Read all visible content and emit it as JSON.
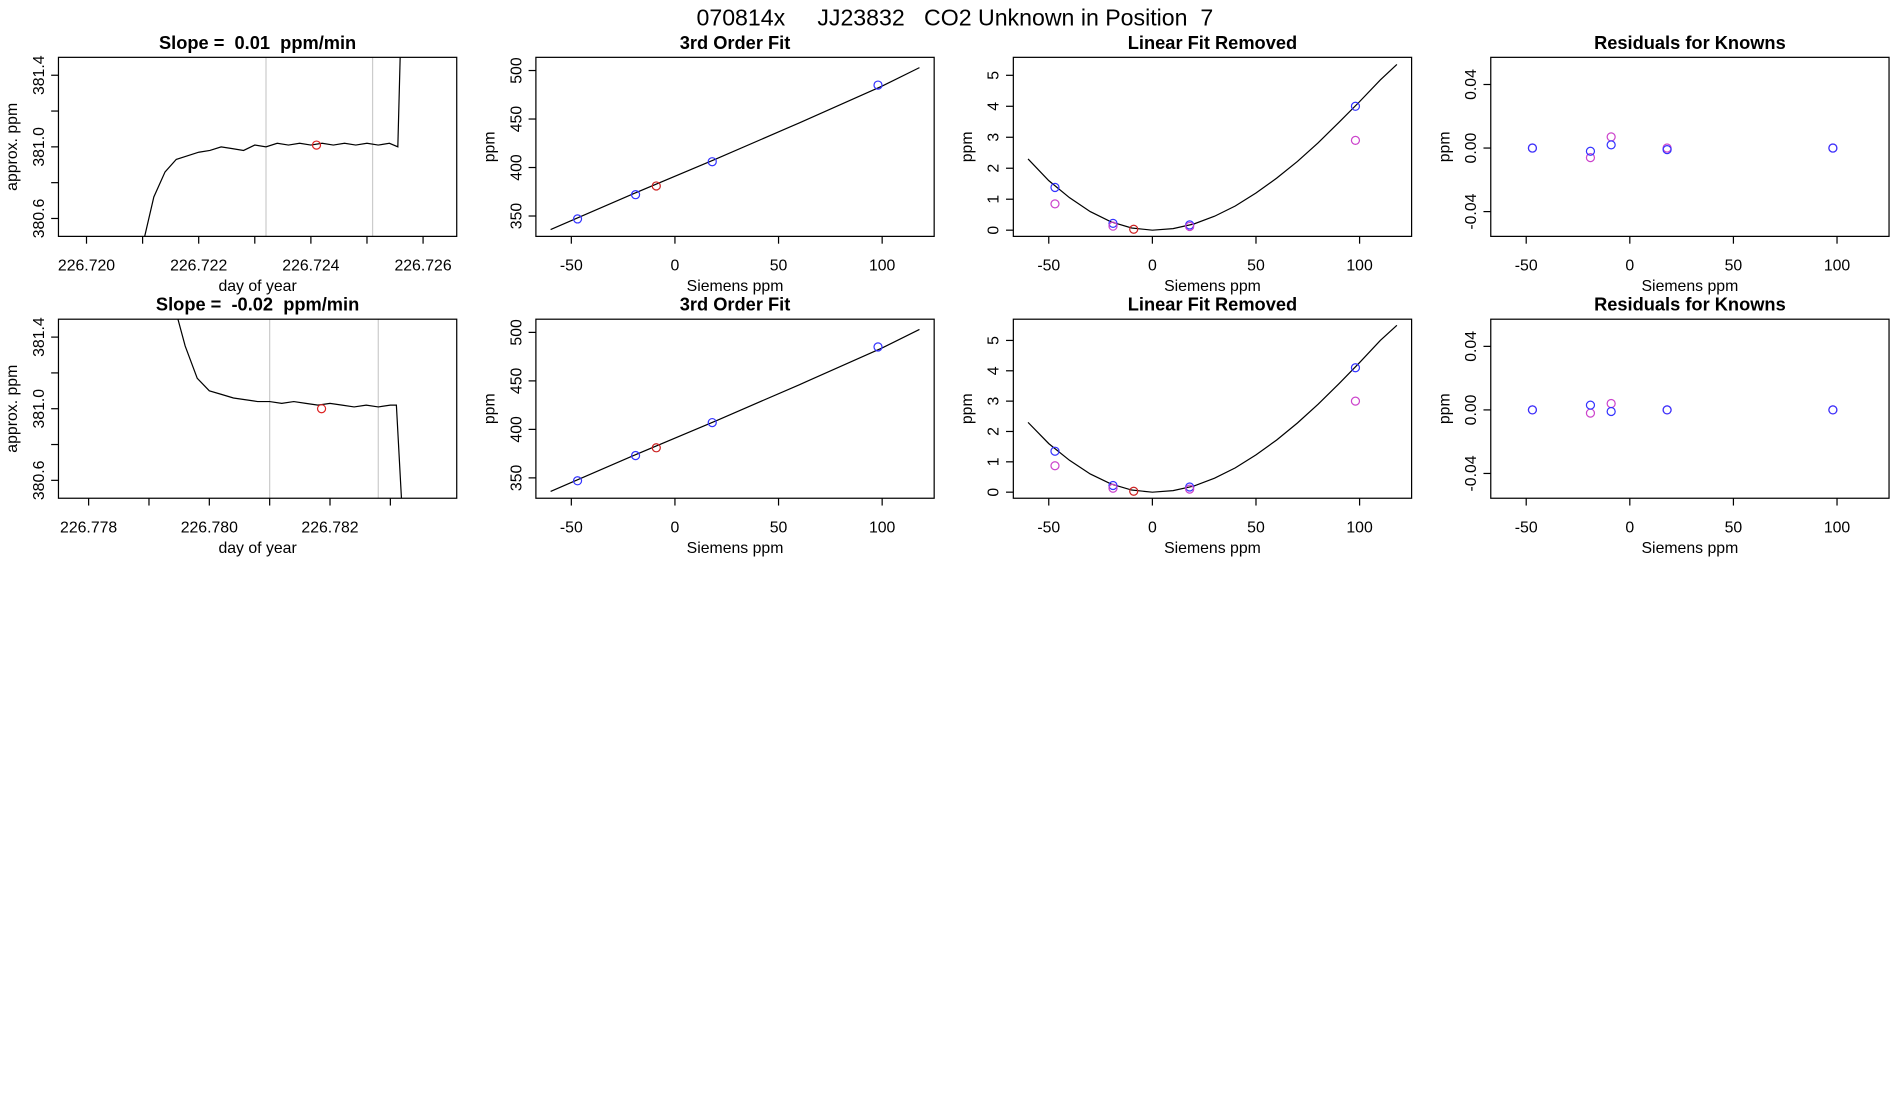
{
  "title": "070814x     JJ23832   CO2 Unknown in Position  7",
  "chart_data": [
    {
      "type": "line",
      "title": "Slope =  0.01  ppm/min",
      "xlabel": "day of year",
      "ylabel": "approx. ppm",
      "xlim": [
        226.7195,
        226.7266
      ],
      "ylim": [
        380.5,
        381.5
      ],
      "xticks": [
        {
          "value": 226.72,
          "label": "226.720"
        },
        {
          "value": 226.722,
          "label": "226.722"
        },
        {
          "value": 226.724,
          "label": "226.724"
        },
        {
          "value": 226.726,
          "label": "226.726"
        }
      ],
      "xticks_minor": [
        226.721,
        226.723,
        226.725
      ],
      "yticks": [
        {
          "value": 380.6,
          "label": "380.6"
        },
        {
          "value": 381,
          "label": "381.0"
        },
        {
          "value": 381.4,
          "label": "381.4"
        }
      ],
      "yticks_minor": [
        380.8,
        381.2
      ],
      "vlines": [
        226.7232,
        226.7251
      ],
      "vline_color": "#cccccc",
      "series": [
        {
          "style": "line",
          "color": "#000000",
          "x": [
            226.721,
            226.7212,
            226.7214,
            226.7216,
            226.7218,
            226.722,
            226.7222,
            226.7224,
            226.7226,
            226.7228,
            226.723,
            226.7232,
            226.7234,
            226.7236,
            226.7238,
            226.724,
            226.7242,
            226.7244,
            226.7246,
            226.7248,
            226.725,
            226.7252,
            226.7254,
            226.72555,
            226.7256
          ],
          "values": [
            380.45,
            380.72,
            380.86,
            380.93,
            380.95,
            380.97,
            380.98,
            381.0,
            380.99,
            380.98,
            381.01,
            381.0,
            381.02,
            381.01,
            381.02,
            381.01,
            381.02,
            381.01,
            381.02,
            381.01,
            381.02,
            381.01,
            381.02,
            381.0,
            381.6
          ]
        },
        {
          "style": "points",
          "color": "#dd2222",
          "x": [
            226.7241
          ],
          "values": [
            381.01
          ]
        }
      ]
    },
    {
      "type": "line",
      "title": "3rd Order Fit",
      "xlabel": "Siemens ppm",
      "ylabel": "ppm",
      "xlim": [
        -67.1,
        125.1
      ],
      "ylim": [
        329,
        513.6
      ],
      "xticks": [
        -50,
        0,
        50,
        100
      ],
      "yticks": [
        350,
        400,
        450,
        500
      ],
      "series": [
        {
          "style": "line",
          "color": "#000000",
          "x": [
            -60,
            -20,
            20,
            60,
            100,
            118
          ],
          "values": [
            336,
            373,
            409,
            446,
            484,
            503
          ]
        },
        {
          "style": "points",
          "color": "#3333ff",
          "x": [
            -47,
            -19,
            18,
            98
          ],
          "values": [
            347,
            372,
            406,
            485
          ]
        },
        {
          "style": "points",
          "color": "#cc2222",
          "x": [
            -9
          ],
          "values": [
            381
          ]
        }
      ]
    },
    {
      "type": "line",
      "title": "Linear Fit Removed",
      "xlabel": "Siemens ppm",
      "ylabel": "ppm",
      "xlim": [
        -67.1,
        125.1
      ],
      "ylim": [
        -0.2,
        5.58
      ],
      "xticks": [
        -50,
        0,
        50,
        100
      ],
      "yticks": [
        0,
        1,
        2,
        3,
        4,
        5
      ],
      "series": [
        {
          "style": "line",
          "color": "#000000",
          "x": [
            -60,
            -50,
            -40,
            -30,
            -20,
            -10,
            0,
            10,
            20,
            30,
            40,
            50,
            60,
            70,
            80,
            90,
            100,
            110,
            118
          ],
          "values": [
            2.3,
            1.6,
            1.05,
            0.6,
            0.27,
            0.07,
            0,
            0.05,
            0.2,
            0.45,
            0.78,
            1.2,
            1.68,
            2.22,
            2.82,
            3.48,
            4.15,
            4.85,
            5.35
          ]
        },
        {
          "style": "points",
          "color": "#3333ff",
          "x": [
            -47,
            -19,
            18,
            98
          ],
          "values": [
            1.38,
            0.22,
            0.17,
            4.0
          ]
        },
        {
          "style": "points",
          "color": "#cc44cc",
          "x": [
            -47,
            -19,
            18,
            98
          ],
          "values": [
            0.85,
            0.13,
            0.12,
            2.9
          ]
        },
        {
          "style": "points",
          "color": "#cc2222",
          "x": [
            -9
          ],
          "values": [
            0.03
          ]
        }
      ]
    },
    {
      "type": "scatter",
      "title": "Residuals for Knowns",
      "xlabel": "Siemens ppm",
      "ylabel": "ppm",
      "xlim": [
        -67.1,
        125.1
      ],
      "ylim": [
        -0.0556,
        0.0571
      ],
      "xticks": [
        -50,
        0,
        50,
        100
      ],
      "yticks": [
        {
          "value": -0.04,
          "label": "-0.04"
        },
        {
          "value": 0,
          "label": "0.00"
        },
        {
          "value": 0.04,
          "label": "0.04"
        }
      ],
      "series": [
        {
          "style": "points",
          "color": "#cc44cc",
          "x": [
            -47,
            -19,
            -9,
            18,
            98
          ],
          "values": [
            0,
            -0.006,
            0.007,
            0,
            0
          ]
        },
        {
          "style": "points",
          "color": "#3333ff",
          "x": [
            -47,
            -19,
            -9,
            18,
            98
          ],
          "values": [
            0,
            -0.002,
            0.002,
            -0.001,
            0
          ]
        }
      ]
    },
    {
      "type": "line",
      "title": "Slope =  -0.02  ppm/min",
      "xlabel": "day of year",
      "ylabel": "approx. ppm",
      "xlim": [
        226.7775,
        226.7841
      ],
      "ylim": [
        380.5,
        381.5
      ],
      "xticks": [
        {
          "value": 226.778,
          "label": "226.778"
        },
        {
          "value": 226.78,
          "label": "226.780"
        },
        {
          "value": 226.782,
          "label": "226.782"
        }
      ],
      "xticks_minor": [
        226.779,
        226.781,
        226.783
      ],
      "yticks": [
        {
          "value": 380.6,
          "label": "380.6"
        },
        {
          "value": 381,
          "label": "381.0"
        },
        {
          "value": 381.4,
          "label": "381.4"
        }
      ],
      "yticks_minor": [
        380.8,
        381.2
      ],
      "vlines": [
        226.781,
        226.7828
      ],
      "vline_color": "#cccccc",
      "series": [
        {
          "style": "line",
          "color": "#000000",
          "x": [
            226.7794,
            226.7796,
            226.7798,
            226.78,
            226.7802,
            226.7804,
            226.7806,
            226.7808,
            226.781,
            226.7812,
            226.7814,
            226.7816,
            226.7818,
            226.782,
            226.7822,
            226.7824,
            226.7826,
            226.7828,
            226.783,
            226.7831,
            226.7832
          ],
          "values": [
            381.6,
            381.35,
            381.17,
            381.1,
            381.08,
            381.06,
            381.05,
            381.04,
            381.04,
            381.03,
            381.04,
            381.03,
            381.02,
            381.03,
            381.02,
            381.01,
            381.02,
            381.01,
            381.02,
            381.02,
            380.4
          ]
        },
        {
          "style": "points",
          "color": "#dd2222",
          "x": [
            226.78186
          ],
          "values": [
            381.0
          ]
        }
      ]
    },
    {
      "type": "line",
      "title": "3rd Order Fit",
      "xlabel": "Siemens ppm",
      "ylabel": "ppm",
      "xlim": [
        -67.1,
        125.1
      ],
      "ylim": [
        329,
        513.6
      ],
      "xticks": [
        -50,
        0,
        50,
        100
      ],
      "yticks": [
        350,
        400,
        450,
        500
      ],
      "series": [
        {
          "style": "line",
          "color": "#000000",
          "x": [
            -60,
            -20,
            20,
            60,
            100,
            118
          ],
          "values": [
            336,
            373,
            409,
            446,
            484,
            503
          ]
        },
        {
          "style": "points",
          "color": "#3333ff",
          "x": [
            -47,
            -19,
            18,
            98
          ],
          "values": [
            347,
            373,
            407,
            485
          ]
        },
        {
          "style": "points",
          "color": "#cc2222",
          "x": [
            -9
          ],
          "values": [
            381
          ]
        }
      ]
    },
    {
      "type": "line",
      "title": "Linear Fit Removed",
      "xlabel": "Siemens ppm",
      "ylabel": "ppm",
      "xlim": [
        -67.1,
        125.1
      ],
      "ylim": [
        -0.2,
        5.7
      ],
      "xticks": [
        -50,
        0,
        50,
        100
      ],
      "yticks": [
        0,
        1,
        2,
        3,
        4,
        5
      ],
      "series": [
        {
          "style": "line",
          "color": "#000000",
          "x": [
            -60,
            -50,
            -40,
            -30,
            -20,
            -10,
            0,
            10,
            20,
            30,
            40,
            50,
            60,
            70,
            80,
            90,
            100,
            110,
            118
          ],
          "values": [
            2.3,
            1.6,
            1.05,
            0.6,
            0.27,
            0.07,
            0,
            0.05,
            0.2,
            0.46,
            0.8,
            1.23,
            1.72,
            2.28,
            2.9,
            3.57,
            4.27,
            5.0,
            5.5
          ]
        },
        {
          "style": "points",
          "color": "#3333ff",
          "x": [
            -47,
            -19,
            18,
            98
          ],
          "values": [
            1.35,
            0.22,
            0.17,
            4.1
          ]
        },
        {
          "style": "points",
          "color": "#cc44cc",
          "x": [
            -47,
            -19,
            18,
            98
          ],
          "values": [
            0.87,
            0.13,
            0.1,
            3.0
          ]
        },
        {
          "style": "points",
          "color": "#cc2222",
          "x": [
            -9
          ],
          "values": [
            0.03
          ]
        }
      ]
    },
    {
      "type": "scatter",
      "title": "Residuals for Knowns",
      "xlabel": "Siemens ppm",
      "ylabel": "ppm",
      "xlim": [
        -67.1,
        125.1
      ],
      "ylim": [
        -0.0556,
        0.0571
      ],
      "xticks": [
        -50,
        0,
        50,
        100
      ],
      "yticks": [
        {
          "value": -0.04,
          "label": "-0.04"
        },
        {
          "value": 0,
          "label": "0.00"
        },
        {
          "value": 0.04,
          "label": "0.04"
        }
      ],
      "series": [
        {
          "style": "points",
          "color": "#cc44cc",
          "x": [
            -47,
            -19,
            -9,
            18,
            98
          ],
          "values": [
            0,
            -0.002,
            0.004,
            0,
            0
          ]
        },
        {
          "style": "points",
          "color": "#3333ff",
          "x": [
            -47,
            -19,
            -9,
            18,
            98
          ],
          "values": [
            0,
            0.003,
            -0.001,
            0,
            0
          ]
        }
      ]
    }
  ]
}
